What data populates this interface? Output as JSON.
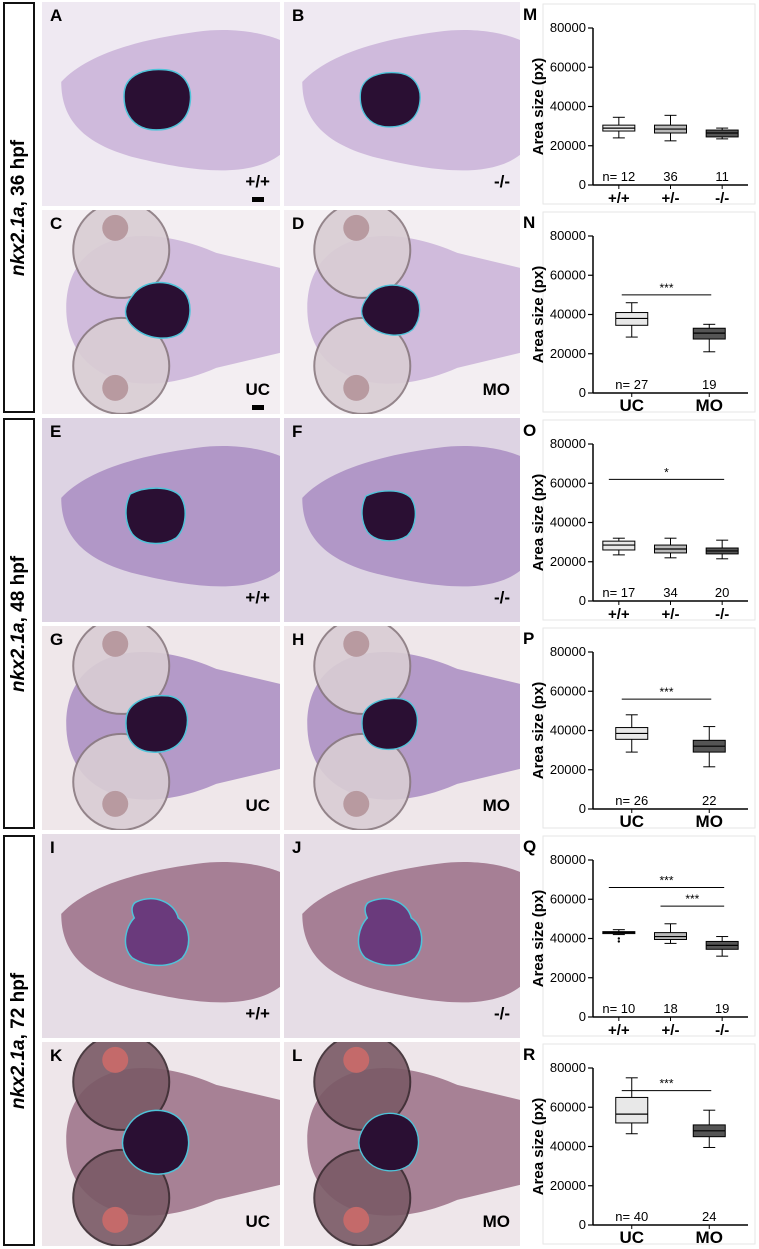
{
  "figure": {
    "stages": [
      {
        "gene": "nkx2.1a",
        "sep": ",",
        "stage": "36 hpf"
      },
      {
        "gene": "nkx2.1a",
        "sep": ",",
        "stage": "48 hpf"
      },
      {
        "gene": "nkx2.1a",
        "sep": ",",
        "stage": "72 hpf"
      }
    ],
    "panels": [
      {
        "letter": "A",
        "genotype": "+/+"
      },
      {
        "letter": "B",
        "genotype": "-/-"
      },
      {
        "letter": "C",
        "genotype": "UC"
      },
      {
        "letter": "D",
        "genotype": "MO"
      },
      {
        "letter": "E",
        "genotype": "+/+"
      },
      {
        "letter": "F",
        "genotype": "-/-"
      },
      {
        "letter": "G",
        "genotype": "UC"
      },
      {
        "letter": "H",
        "genotype": "MO"
      },
      {
        "letter": "I",
        "genotype": "+/+"
      },
      {
        "letter": "J",
        "genotype": "-/-"
      },
      {
        "letter": "K",
        "genotype": "UC"
      },
      {
        "letter": "L",
        "genotype": "MO"
      }
    ],
    "colors": {
      "stain": "#2a0f33",
      "tissue_36": "#c9b2d8",
      "tissue_48": "#a98cc2",
      "tissue_72": "#9a6e86",
      "outline": "#4fc3d9"
    }
  },
  "chart_data": [
    {
      "panel": "M",
      "type": "box",
      "ylabel": "Area size (px)",
      "yticks": [
        0,
        20000,
        40000,
        60000,
        80000
      ],
      "ylim": [
        0,
        80000
      ],
      "categories": [
        "+/+",
        "+/-",
        "-/-"
      ],
      "n_prefix": "n=",
      "n": [
        "12",
        "36",
        "11"
      ],
      "boxes": [
        {
          "min": 24000,
          "q1": 27500,
          "median": 29000,
          "q3": 30500,
          "max": 34500,
          "color": "#e8e8e8"
        },
        {
          "min": 22500,
          "q1": 26500,
          "median": 28500,
          "q3": 30500,
          "max": 35500,
          "color": "#b9b9b9"
        },
        {
          "min": 23500,
          "q1": 24500,
          "median": 26500,
          "q3": 28000,
          "max": 29000,
          "color": "#555555"
        }
      ],
      "significance": []
    },
    {
      "panel": "N",
      "type": "box",
      "ylabel": "Area size (px)",
      "yticks": [
        0,
        20000,
        40000,
        60000,
        80000
      ],
      "ylim": [
        0,
        80000
      ],
      "categories": [
        "UC",
        "MO"
      ],
      "n_prefix": "n=",
      "n": [
        "27",
        "19"
      ],
      "boxes": [
        {
          "min": 28500,
          "q1": 34500,
          "median": 38000,
          "q3": 41000,
          "max": 46000,
          "color": "#e8e8e8"
        },
        {
          "min": 21000,
          "q1": 27500,
          "median": 30500,
          "q3": 33000,
          "max": 35000,
          "color": "#555555"
        }
      ],
      "significance": [
        {
          "from": 0,
          "to": 1,
          "label": "***",
          "y": 50000
        }
      ]
    },
    {
      "panel": "O",
      "type": "box",
      "ylabel": "Area size (px)",
      "yticks": [
        0,
        20000,
        40000,
        60000,
        80000
      ],
      "ylim": [
        0,
        80000
      ],
      "categories": [
        "+/+",
        "+/-",
        "-/-"
      ],
      "n_prefix": "n=",
      "n": [
        "17",
        "34",
        "20"
      ],
      "boxes": [
        {
          "min": 23500,
          "q1": 26000,
          "median": 28500,
          "q3": 30500,
          "max": 32000,
          "color": "#e8e8e8"
        },
        {
          "min": 22000,
          "q1": 24500,
          "median": 26500,
          "q3": 28500,
          "max": 32000,
          "color": "#b9b9b9"
        },
        {
          "min": 21500,
          "q1": 24000,
          "median": 25500,
          "q3": 27000,
          "max": 31000,
          "color": "#555555"
        }
      ],
      "significance": [
        {
          "from": 0,
          "to": 2,
          "label": "*",
          "y": 62000
        }
      ]
    },
    {
      "panel": "P",
      "type": "box",
      "ylabel": "Area size (px)",
      "yticks": [
        0,
        20000,
        40000,
        60000,
        80000
      ],
      "ylim": [
        0,
        80000
      ],
      "categories": [
        "UC",
        "MO"
      ],
      "n_prefix": "n=",
      "n": [
        "26",
        "22"
      ],
      "boxes": [
        {
          "min": 29000,
          "q1": 35500,
          "median": 38500,
          "q3": 41500,
          "max": 48000,
          "color": "#e8e8e8"
        },
        {
          "min": 21500,
          "q1": 29000,
          "median": 32000,
          "q3": 35000,
          "max": 42000,
          "color": "#555555"
        }
      ],
      "significance": [
        {
          "from": 0,
          "to": 1,
          "label": "***",
          "y": 56000
        }
      ]
    },
    {
      "panel": "Q",
      "type": "box",
      "ylabel": "Area size (px)",
      "yticks": [
        0,
        20000,
        40000,
        60000,
        80000
      ],
      "ylim": [
        0,
        80000
      ],
      "categories": [
        "+/+",
        "+/-",
        "-/-"
      ],
      "n_prefix": "n=",
      "n": [
        "10",
        "18",
        "19"
      ],
      "boxes": [
        {
          "min": 42000,
          "q1": 42500,
          "median": 43000,
          "q3": 43500,
          "max": 44500,
          "color": "#e8e8e8",
          "outliers": [
            40000,
            38500
          ]
        },
        {
          "min": 37500,
          "q1": 39500,
          "median": 41000,
          "q3": 43000,
          "max": 47500,
          "color": "#b9b9b9"
        },
        {
          "min": 31000,
          "q1": 34500,
          "median": 36500,
          "q3": 38500,
          "max": 41000,
          "color": "#555555"
        }
      ],
      "significance": [
        {
          "from": 0,
          "to": 2,
          "label": "***",
          "y": 66000
        },
        {
          "from": 1,
          "to": 2,
          "label": "***",
          "y": 56500
        }
      ]
    },
    {
      "panel": "R",
      "type": "box",
      "ylabel": "Area size (px)",
      "yticks": [
        0,
        20000,
        40000,
        60000,
        80000
      ],
      "ylim": [
        0,
        80000
      ],
      "categories": [
        "UC",
        "MO"
      ],
      "n_prefix": "n=",
      "n": [
        "40",
        "24"
      ],
      "boxes": [
        {
          "min": 46500,
          "q1": 52000,
          "median": 56500,
          "q3": 65000,
          "max": 75000,
          "color": "#e8e8e8"
        },
        {
          "min": 39500,
          "q1": 45000,
          "median": 48000,
          "q3": 51000,
          "max": 58500,
          "color": "#555555"
        }
      ],
      "significance": [
        {
          "from": 0,
          "to": 1,
          "label": "***",
          "y": 68500
        }
      ]
    }
  ]
}
